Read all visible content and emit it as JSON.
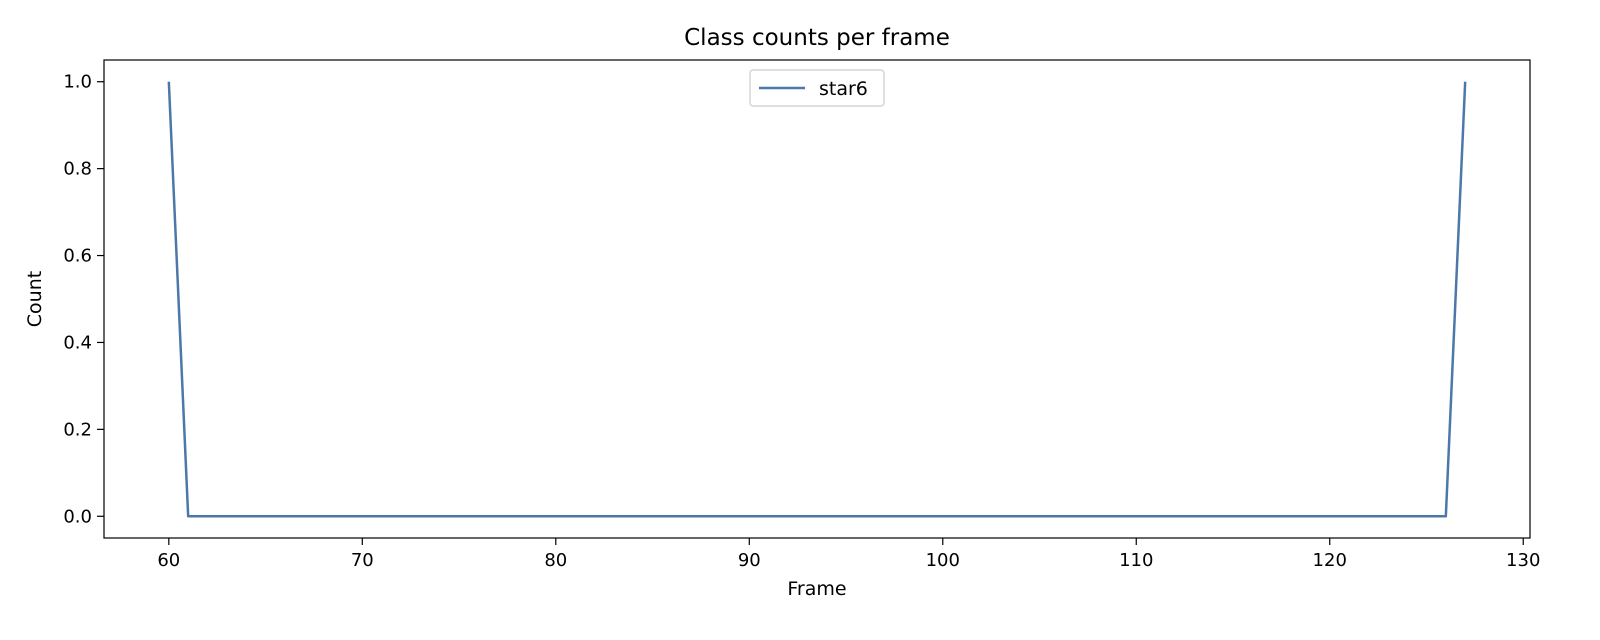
{
  "chart_data": {
    "type": "line",
    "title": "Class counts per frame",
    "xlabel": "Frame",
    "ylabel": "Count",
    "xlim": [
      56.65,
      130.35
    ],
    "ylim": [
      -0.05,
      1.05
    ],
    "xticks": [
      60,
      70,
      80,
      90,
      100,
      110,
      120,
      130
    ],
    "yticks": [
      0.0,
      0.2,
      0.4,
      0.6,
      0.8,
      1.0
    ],
    "xtick_labels": [
      "60",
      "70",
      "80",
      "90",
      "100",
      "110",
      "120",
      "130"
    ],
    "ytick_labels": [
      "0.0",
      "0.2",
      "0.4",
      "0.6",
      "0.8",
      "1.0"
    ],
    "grid": false,
    "legend_position": "upper center",
    "series": [
      {
        "name": "star6",
        "color": "#4c78a8",
        "x": [
          60,
          61,
          126,
          127
        ],
        "y": [
          1,
          0,
          0,
          1
        ]
      }
    ]
  }
}
